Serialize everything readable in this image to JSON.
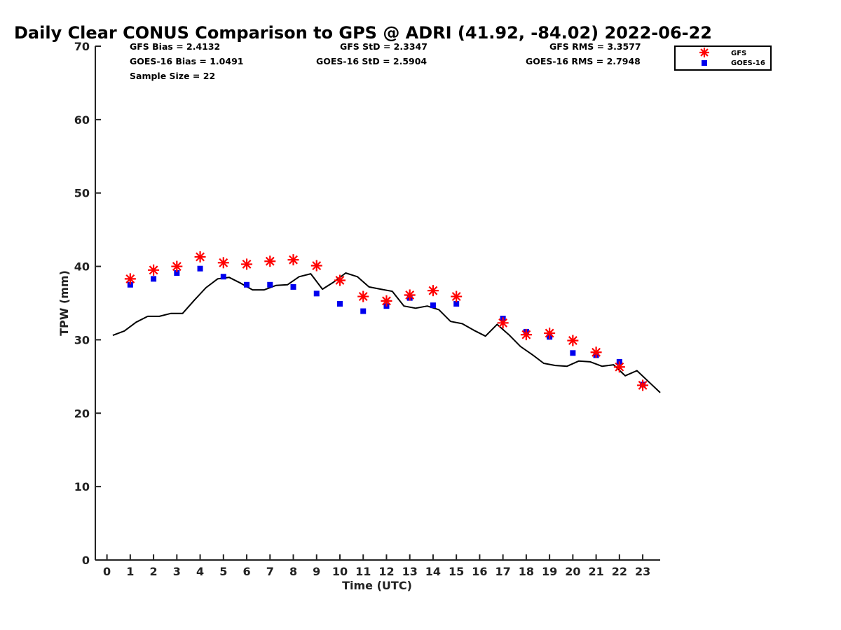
{
  "colors": {
    "gfs": "#ff0000",
    "goes": "#0000ee",
    "gps": "#000000",
    "axis": "#222222"
  },
  "stats": {
    "gfs_bias": "GFS Bias = 2.4132",
    "goes_bias": "GOES-16 Bias = 1.0491",
    "sample_size": "Sample Size = 22",
    "gfs_std": "GFS StD = 2.3347",
    "goes_std": "GOES-16 StD = 2.5904",
    "gfs_rms": "GFS RMS = 3.3577",
    "goes_rms": "GOES-16 RMS = 2.7948"
  },
  "chart_data": {
    "type": "scatter",
    "title": "Daily Clear CONUS Comparison to GPS @ ADRI (41.92, -84.02) 2022-06-22",
    "xlabel": "Time (UTC)",
    "ylabel": "TPW (mm)",
    "xlim": [
      -0.5,
      23.75
    ],
    "ylim": [
      0,
      70
    ],
    "xticks": [
      0,
      1,
      2,
      3,
      4,
      5,
      6,
      7,
      8,
      9,
      10,
      11,
      12,
      13,
      14,
      15,
      16,
      17,
      18,
      19,
      20,
      21,
      22,
      23
    ],
    "yticks": [
      0,
      10,
      20,
      30,
      40,
      50,
      60,
      70
    ],
    "legend_position": "top-right",
    "legend": [
      "GFS",
      "GOES-16"
    ],
    "series": [
      {
        "name": "GFS",
        "marker": "asterisk",
        "x": [
          1,
          2,
          3,
          4,
          5,
          6,
          7,
          8,
          9,
          10,
          11,
          12,
          13,
          14,
          15,
          17,
          18,
          19,
          20,
          21,
          22,
          23
        ],
        "y": [
          38.3,
          39.5,
          40.0,
          41.3,
          40.5,
          40.3,
          40.7,
          40.9,
          40.1,
          38.1,
          35.9,
          35.3,
          36.1,
          36.7,
          35.9,
          32.3,
          30.7,
          30.9,
          29.9,
          28.3,
          26.3,
          23.8
        ]
      },
      {
        "name": "GOES-16",
        "marker": "square",
        "x": [
          1,
          2,
          3,
          4,
          5,
          6,
          7,
          8,
          9,
          10,
          11,
          12,
          13,
          14,
          15,
          17,
          18,
          19,
          20,
          21,
          22,
          23
        ],
        "y": [
          37.5,
          38.3,
          39.1,
          39.7,
          38.6,
          37.5,
          37.5,
          37.2,
          36.3,
          34.9,
          33.9,
          34.6,
          35.7,
          34.7,
          34.9,
          32.9,
          31.1,
          30.4,
          28.2,
          27.9,
          27.0,
          23.9
        ]
      },
      {
        "marker": "line",
        "x": [
          0.25,
          0.75,
          1.25,
          1.75,
          2.25,
          2.75,
          3.25,
          3.75,
          4.25,
          4.75,
          5.25,
          5.75,
          6.25,
          6.75,
          7.25,
          7.75,
          8.25,
          8.75,
          9.25,
          9.75,
          10.25,
          10.75,
          11.25,
          11.75,
          12.25,
          12.75,
          13.25,
          13.75,
          14.25,
          14.75,
          15.25,
          15.75,
          16.25,
          16.75,
          17.25,
          17.75,
          18.25,
          18.75,
          19.25,
          19.75,
          20.25,
          20.75,
          21.25,
          21.75,
          22.25,
          22.75,
          23.25,
          23.75
        ],
        "y": [
          30.6,
          31.2,
          32.4,
          33.2,
          33.2,
          33.6,
          33.6,
          35.4,
          37.1,
          38.3,
          38.5,
          37.7,
          36.8,
          36.8,
          37.4,
          37.5,
          38.6,
          39.0,
          36.9,
          37.9,
          39.1,
          38.6,
          37.2,
          36.9,
          36.6,
          34.6,
          34.3,
          34.6,
          34.1,
          32.5,
          32.2,
          31.3,
          30.5,
          32.1,
          30.7,
          29.1,
          28.0,
          26.8,
          26.5,
          26.4,
          27.1,
          27.0,
          26.4,
          26.6,
          25.1,
          25.8,
          24.3,
          22.8
        ]
      }
    ]
  }
}
